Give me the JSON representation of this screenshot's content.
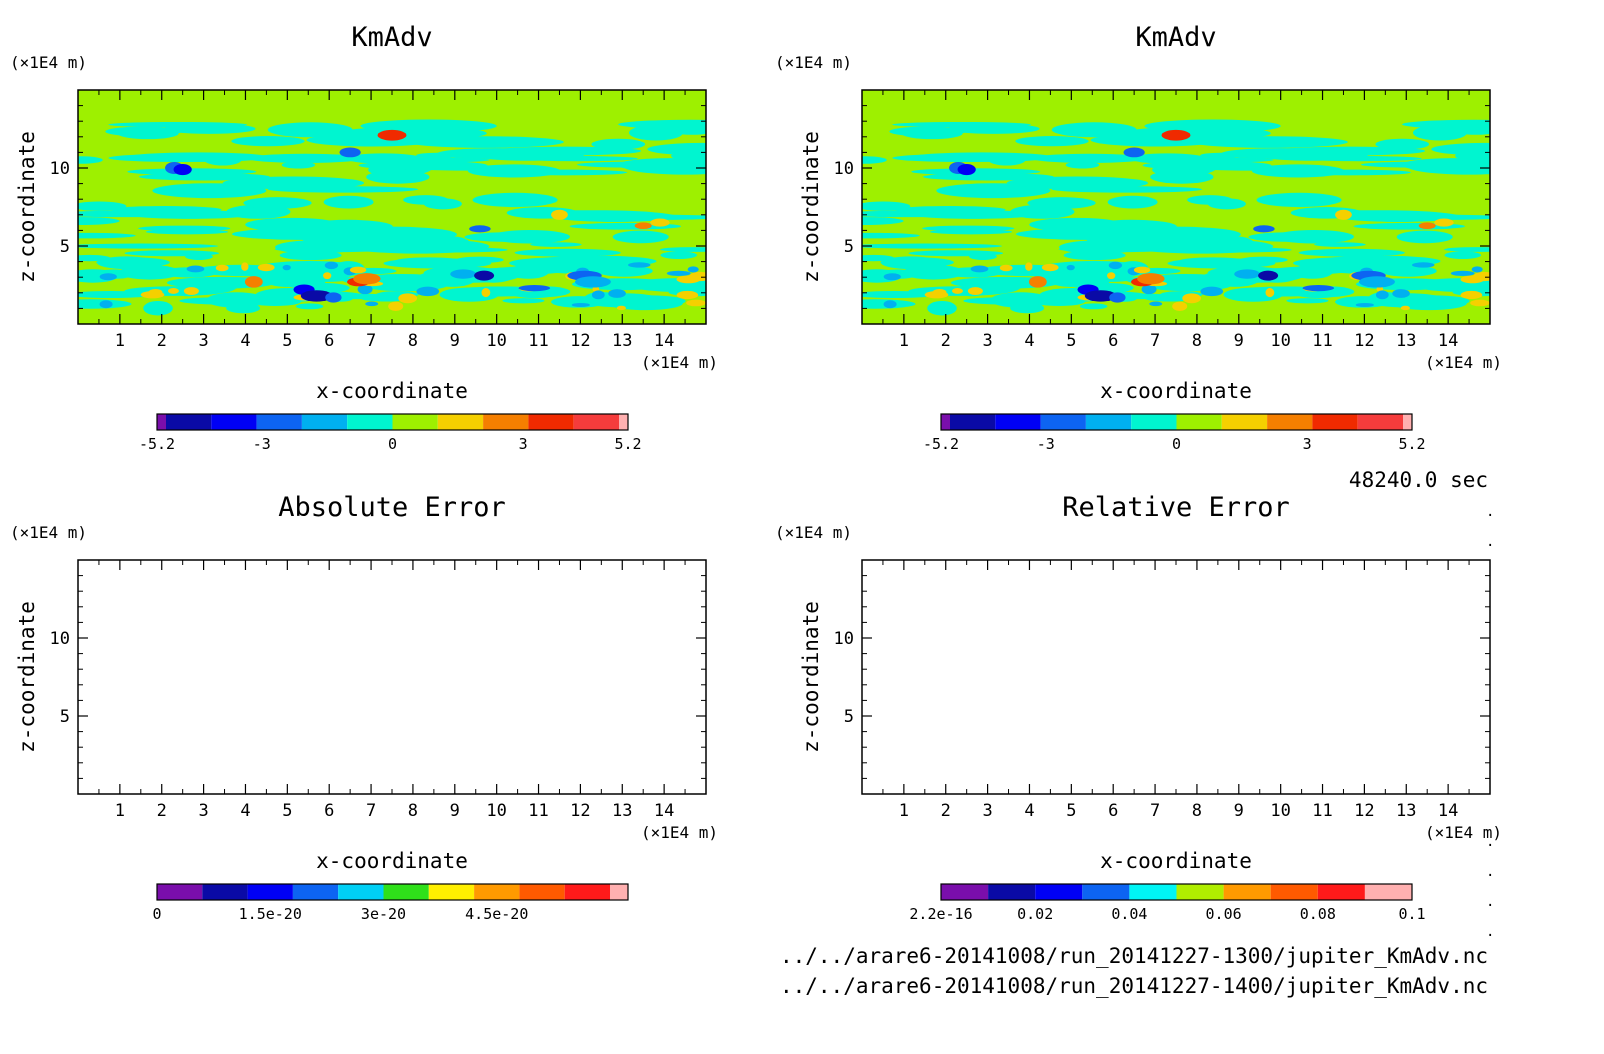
{
  "colors": {
    "kmadv": [
      "#7a0eab",
      "#0a0aa6",
      "#0000f5",
      "#0d64f2",
      "#00b0f0",
      "#00f5d0",
      "#9ef000",
      "#f5d000",
      "#f57f00",
      "#f02a00",
      "#f53c3c",
      "#ffb0b0"
    ],
    "abs": [
      "#7a0eab",
      "#0a0aa6",
      "#0000f5",
      "#0d64f2",
      "#00d0f5",
      "#2fe01a",
      "#ffef00",
      "#ff9a00",
      "#ff5a00",
      "#ff1a1a",
      "#ffb0b0"
    ],
    "rel": [
      "#7a0eab",
      "#0a0aa6",
      "#0000f5",
      "#0d64f2",
      "#00f5f5",
      "#b0ee00",
      "#ff9a00",
      "#ff5a00",
      "#ff1a1a",
      "#ffb0b0"
    ]
  },
  "time_label": "48240.0 sec",
  "files": [
    "../../arare6-20141008/run_20141227-1300/jupiter_KmAdv.nc",
    "../../arare6-20141008/run_20141227-1400/jupiter_KmAdv.nc"
  ],
  "chart_data": [
    {
      "type": "heatmap",
      "title": "KmAdv",
      "xlabel": "x-coordinate",
      "ylabel": "z-coordinate",
      "x_unit": "(×1E4 m)",
      "y_unit": "(×1E4 m)",
      "xlim": [
        0,
        15
      ],
      "ylim": [
        0,
        15
      ],
      "x_ticks": [
        "1",
        "2",
        "3",
        "4",
        "5",
        "6",
        "7",
        "8",
        "9",
        "10",
        "11",
        "12",
        "13",
        "14"
      ],
      "y_ticks": [
        "5",
        "10"
      ],
      "field": "kmadv",
      "colorbar": {
        "min": -5.2,
        "max": 5.2,
        "ticks": [
          {
            "label": "-5.2",
            "value": -5.2
          },
          {
            "label": "-3",
            "value": -3
          },
          {
            "label": "0",
            "value": 0
          },
          {
            "label": "3",
            "value": 3
          },
          {
            "label": "5.2",
            "value": 5.2
          }
        ]
      }
    },
    {
      "type": "heatmap",
      "title": "KmAdv",
      "xlabel": "x-coordinate",
      "ylabel": "z-coordinate",
      "x_unit": "(×1E4 m)",
      "y_unit": "(×1E4 m)",
      "xlim": [
        0,
        15
      ],
      "ylim": [
        0,
        15
      ],
      "x_ticks": [
        "1",
        "2",
        "3",
        "4",
        "5",
        "6",
        "7",
        "8",
        "9",
        "10",
        "11",
        "12",
        "13",
        "14"
      ],
      "y_ticks": [
        "5",
        "10"
      ],
      "field": "kmadv",
      "colorbar": {
        "min": -5.2,
        "max": 5.2,
        "ticks": [
          {
            "label": "-5.2",
            "value": -5.2
          },
          {
            "label": "-3",
            "value": -3
          },
          {
            "label": "0",
            "value": 0
          },
          {
            "label": "3",
            "value": 3
          },
          {
            "label": "5.2",
            "value": 5.2
          }
        ]
      }
    },
    {
      "type": "heatmap",
      "title": "Absolute Error",
      "xlabel": "x-coordinate",
      "ylabel": "z-coordinate",
      "x_unit": "(×1E4 m)",
      "y_unit": "(×1E4 m)",
      "xlim": [
        0,
        15
      ],
      "ylim": [
        0,
        15
      ],
      "x_ticks": [
        "1",
        "2",
        "3",
        "4",
        "5",
        "6",
        "7",
        "8",
        "9",
        "10",
        "11",
        "12",
        "13",
        "14"
      ],
      "y_ticks": [
        "5",
        "10"
      ],
      "field": "empty",
      "colorbar": {
        "min": 0,
        "max": 6e-20,
        "ticks": [
          {
            "label": "0",
            "value": 0
          },
          {
            "label": "1.5e-20",
            "value": 1.5e-20
          },
          {
            "label": "3e-20",
            "value": 3e-20
          },
          {
            "label": "4.5e-20",
            "value": 4.5e-20
          }
        ]
      }
    },
    {
      "type": "heatmap",
      "title": "Relative Error",
      "xlabel": "x-coordinate",
      "ylabel": "z-coordinate",
      "x_unit": "(×1E4 m)",
      "y_unit": "(×1E4 m)",
      "xlim": [
        0,
        15
      ],
      "ylim": [
        0,
        15
      ],
      "x_ticks": [
        "1",
        "2",
        "3",
        "4",
        "5",
        "6",
        "7",
        "8",
        "9",
        "10",
        "11",
        "12",
        "13",
        "14"
      ],
      "y_ticks": [
        "5",
        "10"
      ],
      "field": "empty",
      "colorbar": {
        "min": 0,
        "max": 0.1,
        "ticks": [
          {
            "label": "2.2e-16",
            "value": 0
          },
          {
            "label": "0.02",
            "value": 0.02
          },
          {
            "label": "0.04",
            "value": 0.04
          },
          {
            "label": "0.06",
            "value": 0.06
          },
          {
            "label": "0.08",
            "value": 0.08
          },
          {
            "label": "0.1",
            "value": 0.1
          }
        ]
      }
    }
  ]
}
